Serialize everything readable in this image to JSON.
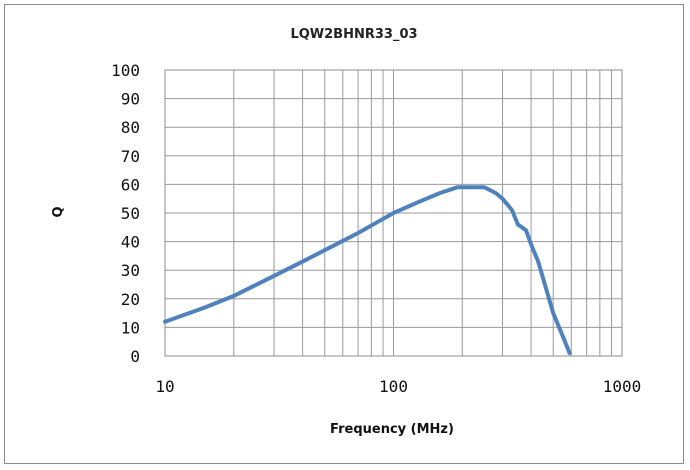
{
  "chart_data": {
    "type": "line",
    "title": "LQW2BHNR33_03",
    "xlabel": "Frequency (MHz)",
    "ylabel": "Q",
    "xscale": "log",
    "xlim": [
      10,
      1000
    ],
    "ylim": [
      0,
      100
    ],
    "grid": true,
    "x_ticks": [
      "10",
      "100",
      "1000"
    ],
    "y_ticks": [
      "0",
      "10",
      "20",
      "30",
      "40",
      "50",
      "60",
      "70",
      "80",
      "90",
      "100"
    ],
    "series": [
      {
        "color": "#4f81bd",
        "x": [
          10,
          15,
          20,
          30,
          40,
          50,
          70,
          100,
          130,
          160,
          190,
          220,
          250,
          280,
          300,
          330,
          350,
          380,
          400,
          430,
          460,
          500,
          550,
          590
        ],
        "y": [
          12,
          17,
          21,
          28,
          33,
          37,
          43,
          50,
          54,
          57,
          59,
          59,
          59,
          57,
          55,
          51,
          46,
          44,
          39,
          33,
          25,
          15,
          7,
          1
        ]
      }
    ]
  }
}
